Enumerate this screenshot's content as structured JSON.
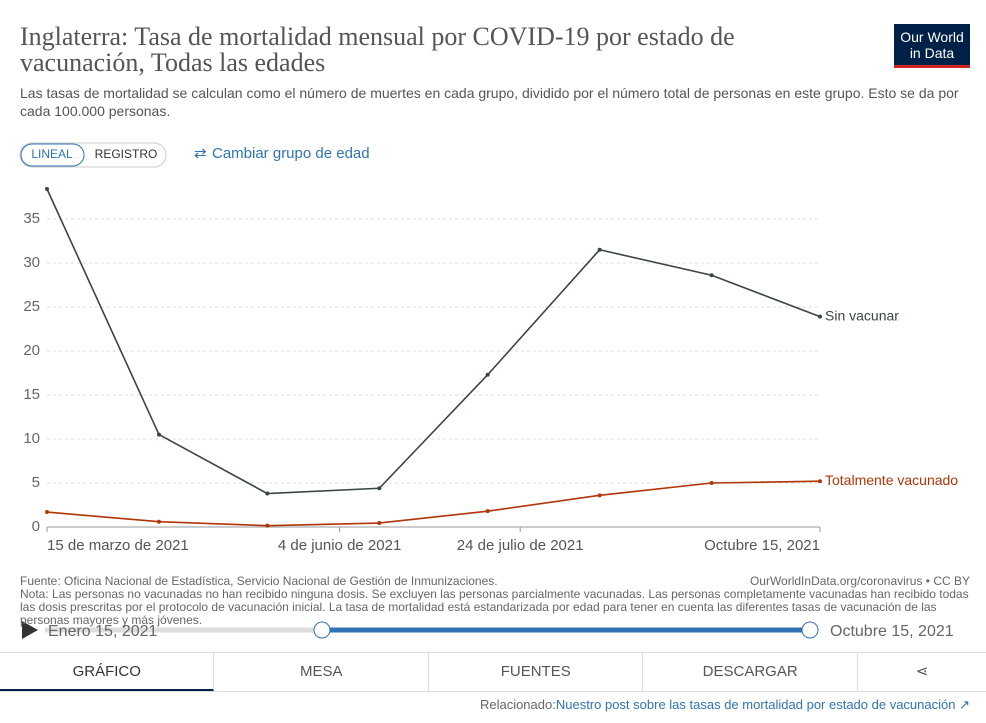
{
  "logo": "Our World in Data",
  "controls": {
    "linear": "LINEAL",
    "log": "REGISTRO",
    "change": "Cambiar grupo de edad"
  },
  "chart_data": {
    "type": "line",
    "title": "Inglaterra: Tasa de mortalidad mensual por COVID-19 por estado de vacunación, Todas las edades",
    "subtitle": "Las tasas de mortalidad se calculan como el número de muertes en cada grupo, dividido por el número total de personas en este grupo. Esto se da por cada 100.000 personas.",
    "x": [
      "2021-03-15",
      "2021-04-15",
      "2021-05-15",
      "2021-06-15",
      "2021-07-15",
      "2021-08-15",
      "2021-09-15",
      "2021-10-15"
    ],
    "xlim": [
      "2021-03-15",
      "2021-10-15"
    ],
    "xticks": [
      {
        "value": "2021-03-15",
        "label": "15 de marzo de 2021"
      },
      {
        "value": "2021-06-04",
        "label": "4 de junio de 2021"
      },
      {
        "value": "2021-07-24",
        "label": "24 de julio de 2021"
      },
      {
        "value": "2021-10-15",
        "label": "Octubre 15, 2021"
      }
    ],
    "ylim": [
      0,
      38.4
    ],
    "yticks": [
      0,
      5,
      10,
      15,
      20,
      25,
      30,
      35
    ],
    "grid": true,
    "series": [
      {
        "name": "Sin vacunar",
        "color": "#3c4545",
        "values": [
          38.4,
          10.5,
          3.8,
          4.4,
          17.3,
          31.5,
          28.6,
          23.9
        ]
      },
      {
        "name": "Totalmente vacunado",
        "color": "#b13507",
        "values": [
          1.7,
          0.6,
          0.15,
          0.45,
          1.8,
          3.6,
          5.0,
          5.2
        ]
      }
    ],
    "source": "Fuente: Oficina Nacional de Estadística, Servicio Nacional de Gestión de Inmunizaciones.",
    "url": "OurWorldInData.org/coronavirus • CC BY",
    "note": "Nota: Las personas no vacunadas no han recibido ninguna dosis. Se excluyen las personas parcialmente vacunadas. Las personas completamente vacunadas han recibido todas las dosis prescritas por el protocolo de vacunación inicial. La tasa de mortalidad está estandarizada por edad para tener en cuenta las diferentes tasas de vacunación de las personas mayores y más jóvenes."
  },
  "slider": {
    "start": "Enero 15, 2021",
    "end": "Octubre 15, 2021"
  },
  "tabs": [
    "GRÁFICO",
    "MESA",
    "FUENTES",
    "DESCARGAR"
  ],
  "related": {
    "label": "Relacionado:",
    "link": "Nuestro post sobre las tasas de mortalidad por estado de vacunación"
  }
}
